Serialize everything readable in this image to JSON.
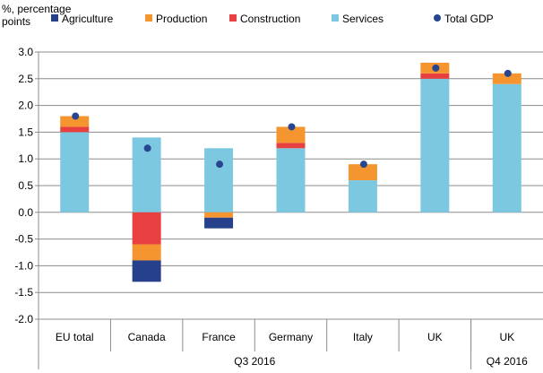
{
  "chart_data": {
    "type": "bar",
    "stacked": true,
    "ylabel": "%, percentage points",
    "ylim": [
      -2.0,
      3.0
    ],
    "yticks": [
      "3.0",
      "2.5",
      "2.0",
      "1.5",
      "1.0",
      "0.5",
      "0.0",
      "-0.5",
      "-1.0",
      "-1.5",
      "-2.0"
    ],
    "grid": true,
    "legend_position": "top",
    "categories": [
      "EU total",
      "Canada",
      "France",
      "Germany",
      "Italy",
      "UK",
      "UK"
    ],
    "groups": [
      {
        "label": "Q3 2016",
        "span": 6
      },
      {
        "label": "Q4 2016",
        "span": 1
      }
    ],
    "series": [
      {
        "name": "Agriculture",
        "color": "#27408B",
        "values": [
          0,
          -0.4,
          -0.2,
          0,
          0,
          0,
          0
        ]
      },
      {
        "name": "Production",
        "color": "#F4952F",
        "values": [
          0.2,
          -0.3,
          -0.1,
          0.3,
          0.3,
          0.2,
          0.2
        ]
      },
      {
        "name": "Construction",
        "color": "#E84040",
        "values": [
          0.1,
          -0.6,
          0,
          0.1,
          0,
          0.1,
          0
        ]
      },
      {
        "name": "Services",
        "color": "#7CC8E0",
        "values": [
          1.5,
          1.4,
          1.2,
          1.2,
          0.6,
          2.5,
          2.4
        ]
      }
    ],
    "markers": {
      "name": "Total GDP",
      "color": "#27468F",
      "values": [
        1.8,
        1.2,
        0.9,
        1.6,
        0.9,
        2.7,
        2.6
      ]
    }
  }
}
